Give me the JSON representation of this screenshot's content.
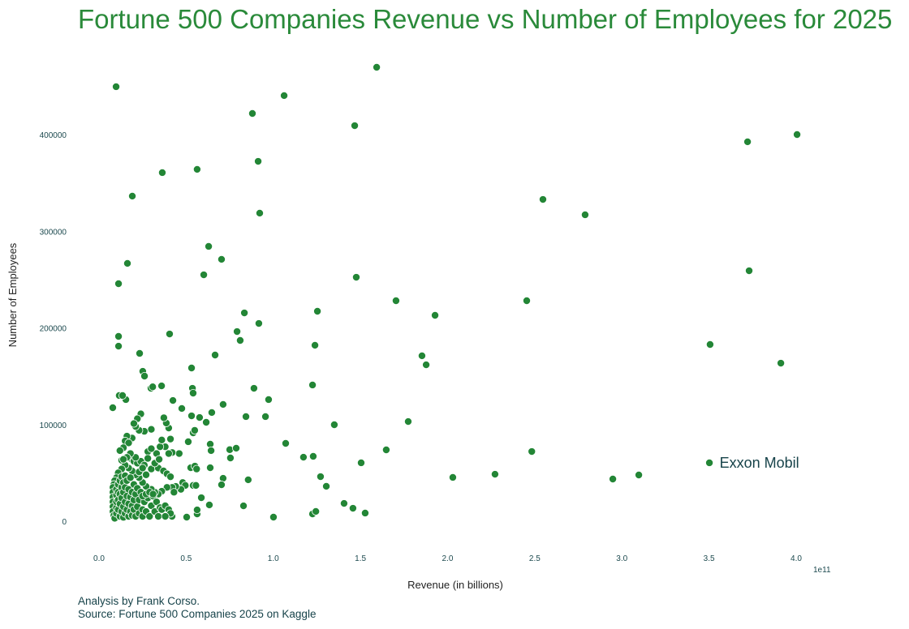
{
  "chart_data": {
    "type": "scatter",
    "title": "Fortune 500 Companies Revenue vs Number of Employees for 2025",
    "xlabel": "Revenue (in billions)",
    "ylabel": "Number of Employees",
    "x_offset_label": "1e11",
    "xlim": [
      -0.1,
      4.35
    ],
    "ylim": [
      -30000,
      480000
    ],
    "xticks": [
      "0.0",
      "0.5",
      "1.0",
      "1.5",
      "2.0",
      "2.5",
      "3.0",
      "3.5",
      "4.0"
    ],
    "yticks": [
      "0",
      "100000",
      "200000",
      "300000",
      "400000"
    ],
    "grid": false,
    "color": "#238636",
    "annotation": {
      "label": "Exxon Mobil",
      "x": 3.5,
      "y": 60400
    },
    "points": [
      [
        0.098,
        449500
      ],
      [
        1.593,
        469600
      ],
      [
        1.062,
        440300
      ],
      [
        0.88,
        421800
      ],
      [
        1.467,
        409200
      ],
      [
        0.913,
        372300
      ],
      [
        0.563,
        364000
      ],
      [
        0.363,
        360600
      ],
      [
        0.191,
        336300
      ],
      [
        0.922,
        318700
      ],
      [
        2.547,
        332900
      ],
      [
        2.789,
        317000
      ],
      [
        3.721,
        392500
      ],
      [
        4.005,
        400000
      ],
      [
        3.73,
        259100
      ],
      [
        0.163,
        266700
      ],
      [
        0.112,
        245700
      ],
      [
        0.629,
        284300
      ],
      [
        0.703,
        270900
      ],
      [
        0.601,
        254900
      ],
      [
        1.476,
        252400
      ],
      [
        1.704,
        228100
      ],
      [
        2.454,
        228100
      ],
      [
        1.928,
        213000
      ],
      [
        1.253,
        217200
      ],
      [
        0.834,
        215500
      ],
      [
        0.792,
        196200
      ],
      [
        0.81,
        187000
      ],
      [
        0.917,
        204600
      ],
      [
        0.405,
        193700
      ],
      [
        0.112,
        191200
      ],
      [
        0.112,
        181100
      ],
      [
        0.233,
        173600
      ],
      [
        1.239,
        182000
      ],
      [
        1.853,
        171100
      ],
      [
        1.877,
        161800
      ],
      [
        3.506,
        182800
      ],
      [
        3.912,
        163500
      ],
      [
        0.531,
        158500
      ],
      [
        0.666,
        171900
      ],
      [
        0.251,
        155100
      ],
      [
        0.261,
        150100
      ],
      [
        0.359,
        140000
      ],
      [
        0.298,
        137500
      ],
      [
        0.308,
        139000
      ],
      [
        0.536,
        137500
      ],
      [
        0.54,
        132500
      ],
      [
        1.225,
        140900
      ],
      [
        0.889,
        137500
      ],
      [
        0.712,
        120800
      ],
      [
        0.973,
        125800
      ],
      [
        0.424,
        124900
      ],
      [
        0.154,
        125800
      ],
      [
        0.116,
        130000
      ],
      [
        0.135,
        130000
      ],
      [
        0.475,
        116600
      ],
      [
        0.079,
        117400
      ],
      [
        0.647,
        112400
      ],
      [
        0.531,
        109000
      ],
      [
        0.577,
        107300
      ],
      [
        0.615,
        102300
      ],
      [
        0.843,
        108200
      ],
      [
        0.955,
        108200
      ],
      [
        1.35,
        99800
      ],
      [
        1.774,
        103100
      ],
      [
        1.071,
        80500
      ],
      [
        1.173,
        66200
      ],
      [
        1.229,
        67100
      ],
      [
        1.271,
        46100
      ],
      [
        1.304,
        36100
      ],
      [
        1.504,
        60400
      ],
      [
        1.648,
        73800
      ],
      [
        2.03,
        45300
      ],
      [
        2.272,
        48600
      ],
      [
        2.483,
        72100
      ],
      [
        2.948,
        43600
      ],
      [
        3.097,
        47800
      ],
      [
        3.502,
        60400
      ],
      [
        1.001,
        4200
      ],
      [
        1.225,
        7500
      ],
      [
        1.244,
        10100
      ],
      [
        1.406,
        18400
      ],
      [
        1.457,
        13400
      ],
      [
        1.527,
        8400
      ],
      [
        0.829,
        15900
      ],
      [
        0.856,
        42800
      ],
      [
        0.712,
        44400
      ],
      [
        0.703,
        37700
      ],
      [
        0.633,
        16800
      ],
      [
        0.587,
        24300
      ],
      [
        0.563,
        7500
      ],
      [
        0.563,
        11700
      ],
      [
        0.503,
        4200
      ],
      [
        0.419,
        5000
      ],
      [
        0.75,
        74000
      ],
      [
        0.754,
        65400
      ],
      [
        0.787,
        75500
      ],
      [
        0.638,
        79700
      ],
      [
        0.643,
        73000
      ],
      [
        0.638,
        55300
      ],
      [
        0.512,
        82200
      ],
      [
        0.54,
        91400
      ],
      [
        0.549,
        94000
      ],
      [
        0.4,
        96400
      ],
      [
        0.386,
        101500
      ],
      [
        0.372,
        107000
      ],
      [
        0.526,
        55300
      ],
      [
        0.55,
        57000
      ],
      [
        0.56,
        54000
      ],
      [
        0.54,
        37000
      ],
      [
        0.556,
        37000
      ],
      [
        0.48,
        40000
      ],
      [
        0.495,
        37000
      ],
      [
        0.47,
        33000
      ],
      [
        0.44,
        36000
      ],
      [
        0.42,
        35000
      ],
      [
        0.43,
        30000
      ],
      [
        0.46,
        70000
      ],
      [
        0.42,
        71000
      ],
      [
        0.4,
        70000
      ],
      [
        0.38,
        77000
      ],
      [
        0.35,
        77000
      ],
      [
        0.36,
        84000
      ],
      [
        0.41,
        85000
      ],
      [
        0.33,
        70000
      ],
      [
        0.3,
        95000
      ],
      [
        0.28,
        72000
      ],
      [
        0.26,
        93000
      ],
      [
        0.23,
        94000
      ],
      [
        0.24,
        111000
      ],
      [
        0.22,
        106000
      ],
      [
        0.21,
        98000
      ],
      [
        0.2,
        101000
      ],
      [
        0.19,
        86000
      ],
      [
        0.16,
        88000
      ],
      [
        0.15,
        83000
      ],
      [
        0.17,
        81000
      ],
      [
        0.14,
        76000
      ],
      [
        0.12,
        73000
      ],
      [
        0.13,
        63000
      ],
      [
        0.18,
        65000
      ],
      [
        0.2,
        62000
      ],
      [
        0.22,
        60000
      ],
      [
        0.24,
        62000
      ],
      [
        0.26,
        58000
      ],
      [
        0.3,
        54000
      ],
      [
        0.34,
        55000
      ],
      [
        0.37,
        52000
      ],
      [
        0.39,
        49000
      ],
      [
        0.41,
        46000
      ],
      [
        0.39,
        35000
      ],
      [
        0.36,
        31000
      ],
      [
        0.34,
        28000
      ],
      [
        0.32,
        30000
      ],
      [
        0.3,
        33000
      ],
      [
        0.28,
        29000
      ],
      [
        0.27,
        36000
      ],
      [
        0.25,
        40000
      ],
      [
        0.23,
        45000
      ],
      [
        0.21,
        48000
      ],
      [
        0.19,
        52000
      ],
      [
        0.17,
        55000
      ],
      [
        0.15,
        58000
      ],
      [
        0.13,
        54000
      ],
      [
        0.11,
        50000
      ],
      [
        0.1,
        45000
      ],
      [
        0.09,
        42000
      ],
      [
        0.085,
        38000
      ],
      [
        0.08,
        35000
      ],
      [
        0.08,
        30000
      ],
      [
        0.08,
        25000
      ],
      [
        0.08,
        20000
      ],
      [
        0.08,
        15000
      ],
      [
        0.08,
        10000
      ],
      [
        0.085,
        6000
      ],
      [
        0.09,
        3000
      ],
      [
        0.1,
        8000
      ],
      [
        0.1,
        14000
      ],
      [
        0.1,
        20000
      ],
      [
        0.1,
        27000
      ],
      [
        0.1,
        33000
      ],
      [
        0.11,
        38000
      ],
      [
        0.11,
        30000
      ],
      [
        0.11,
        22000
      ],
      [
        0.11,
        12000
      ],
      [
        0.12,
        5000
      ],
      [
        0.12,
        18000
      ],
      [
        0.12,
        28000
      ],
      [
        0.12,
        42000
      ],
      [
        0.13,
        10000
      ],
      [
        0.13,
        24000
      ],
      [
        0.13,
        35000
      ],
      [
        0.13,
        46000
      ],
      [
        0.14,
        4000
      ],
      [
        0.14,
        15000
      ],
      [
        0.14,
        30000
      ],
      [
        0.14,
        40000
      ],
      [
        0.15,
        8000
      ],
      [
        0.15,
        20000
      ],
      [
        0.15,
        35000
      ],
      [
        0.15,
        47000
      ],
      [
        0.16,
        12000
      ],
      [
        0.16,
        26000
      ],
      [
        0.16,
        42000
      ],
      [
        0.17,
        5000
      ],
      [
        0.17,
        18000
      ],
      [
        0.17,
        33000
      ],
      [
        0.18,
        10000
      ],
      [
        0.18,
        25000
      ],
      [
        0.18,
        45000
      ],
      [
        0.19,
        6000
      ],
      [
        0.19,
        16000
      ],
      [
        0.19,
        30000
      ],
      [
        0.2,
        12000
      ],
      [
        0.2,
        22000
      ],
      [
        0.2,
        38000
      ],
      [
        0.21,
        5000
      ],
      [
        0.21,
        28000
      ],
      [
        0.22,
        15000
      ],
      [
        0.22,
        34000
      ],
      [
        0.23,
        8000
      ],
      [
        0.23,
        22000
      ],
      [
        0.24,
        30000
      ],
      [
        0.25,
        12000
      ],
      [
        0.25,
        5000
      ],
      [
        0.26,
        20000
      ],
      [
        0.27,
        10000
      ],
      [
        0.28,
        24000
      ],
      [
        0.29,
        5000
      ],
      [
        0.3,
        16000
      ],
      [
        0.31,
        26000
      ],
      [
        0.32,
        10000
      ],
      [
        0.33,
        20000
      ],
      [
        0.34,
        5000
      ],
      [
        0.35,
        14000
      ],
      [
        0.36,
        12000
      ],
      [
        0.38,
        16000
      ],
      [
        0.4,
        12000
      ],
      [
        0.41,
        8000
      ],
      [
        0.38,
        5000
      ],
      [
        0.25,
        26000
      ],
      [
        0.27,
        28000
      ],
      [
        0.29,
        30000
      ],
      [
        0.31,
        28000
      ],
      [
        0.23,
        51000
      ],
      [
        0.25,
        55000
      ],
      [
        0.27,
        48000
      ],
      [
        0.21,
        66000
      ],
      [
        0.18,
        70000
      ],
      [
        0.16,
        66000
      ],
      [
        0.14,
        64000
      ],
      [
        0.32,
        60000
      ],
      [
        0.345,
        64000
      ],
      [
        0.28,
        65000
      ],
      [
        0.3,
        75000
      ]
    ]
  },
  "credits": {
    "line1": "Analysis by Frank Corso.",
    "line2": "Source: Fortune 500 Companies 2025 on Kaggle"
  }
}
